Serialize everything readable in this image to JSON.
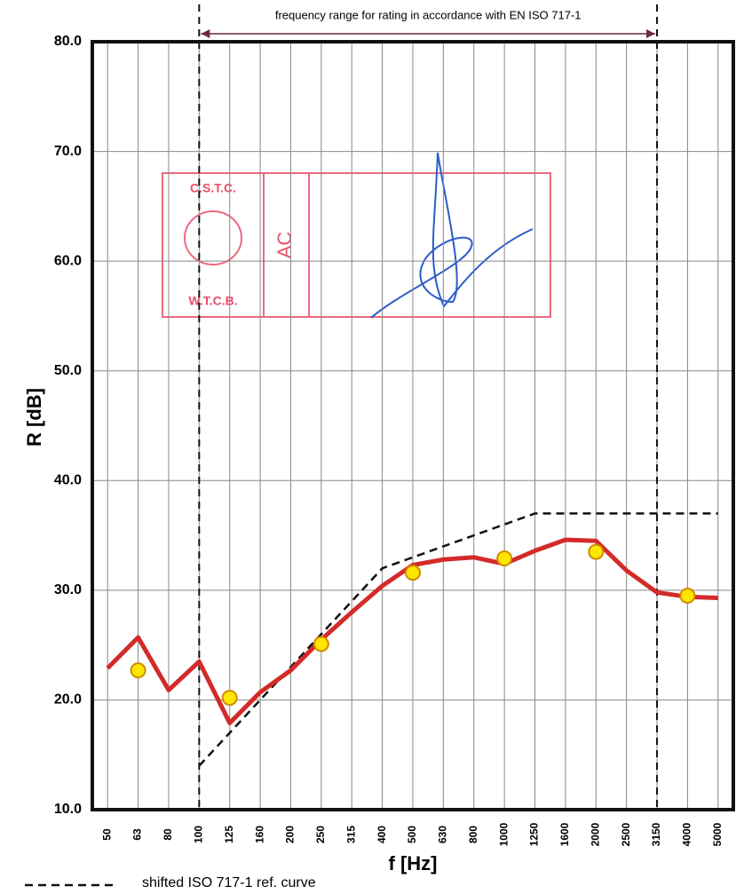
{
  "chart_data": {
    "type": "line",
    "categories": [
      "50",
      "63",
      "80",
      "100",
      "125",
      "160",
      "200",
      "250",
      "315",
      "400",
      "500",
      "630",
      "800",
      "1000",
      "1250",
      "1600",
      "2000",
      "2500",
      "3150",
      "4000",
      "5000"
    ],
    "series": [
      {
        "name": "shifted ISO 717-1 ref. curve",
        "color": "#111111",
        "style": "dashed",
        "values": [
          null,
          null,
          null,
          14,
          17,
          20,
          23,
          26,
          29,
          32,
          33,
          34,
          35,
          36,
          37,
          37,
          37,
          37,
          37,
          37,
          37
        ]
      },
      {
        "color": "#d42a2a",
        "style": "line",
        "values": [
          22.9,
          25.7,
          20.9,
          23.5,
          17.9,
          20.7,
          22.7,
          25.5,
          28.0,
          30.4,
          32.3,
          32.8,
          33.0,
          32.4,
          33.6,
          34.6,
          34.5,
          31.8,
          29.8,
          29.4,
          29.3
        ]
      },
      {
        "color": "#ffe600",
        "style": "dots",
        "values": [
          null,
          22.7,
          null,
          null,
          20.2,
          null,
          null,
          25.1,
          null,
          null,
          31.6,
          null,
          null,
          32.9,
          null,
          null,
          33.5,
          null,
          null,
          29.5,
          null
        ]
      }
    ],
    "ylim": [
      10,
      80
    ],
    "yticks": [
      {
        "value": 10,
        "label": "10.0"
      },
      {
        "value": 20,
        "label": "20.0"
      },
      {
        "value": 30,
        "label": "30.0"
      },
      {
        "value": 40,
        "label": "40.0"
      },
      {
        "value": 50,
        "label": "50.0"
      },
      {
        "value": 60,
        "label": "60.0"
      },
      {
        "value": 70,
        "label": "70.0"
      },
      {
        "value": 80,
        "label": "80.0"
      }
    ],
    "grid": true,
    "xlabel": "f [Hz]",
    "ylabel": "R [dB]",
    "rating_range": {
      "from": "100",
      "to": "3150",
      "label": "frequency range for rating in accordance with EN ISO 717-1"
    },
    "stamp": {
      "top": "C.S.T.C.",
      "bottom": "W.T.C.B.",
      "initials": "AC"
    }
  }
}
